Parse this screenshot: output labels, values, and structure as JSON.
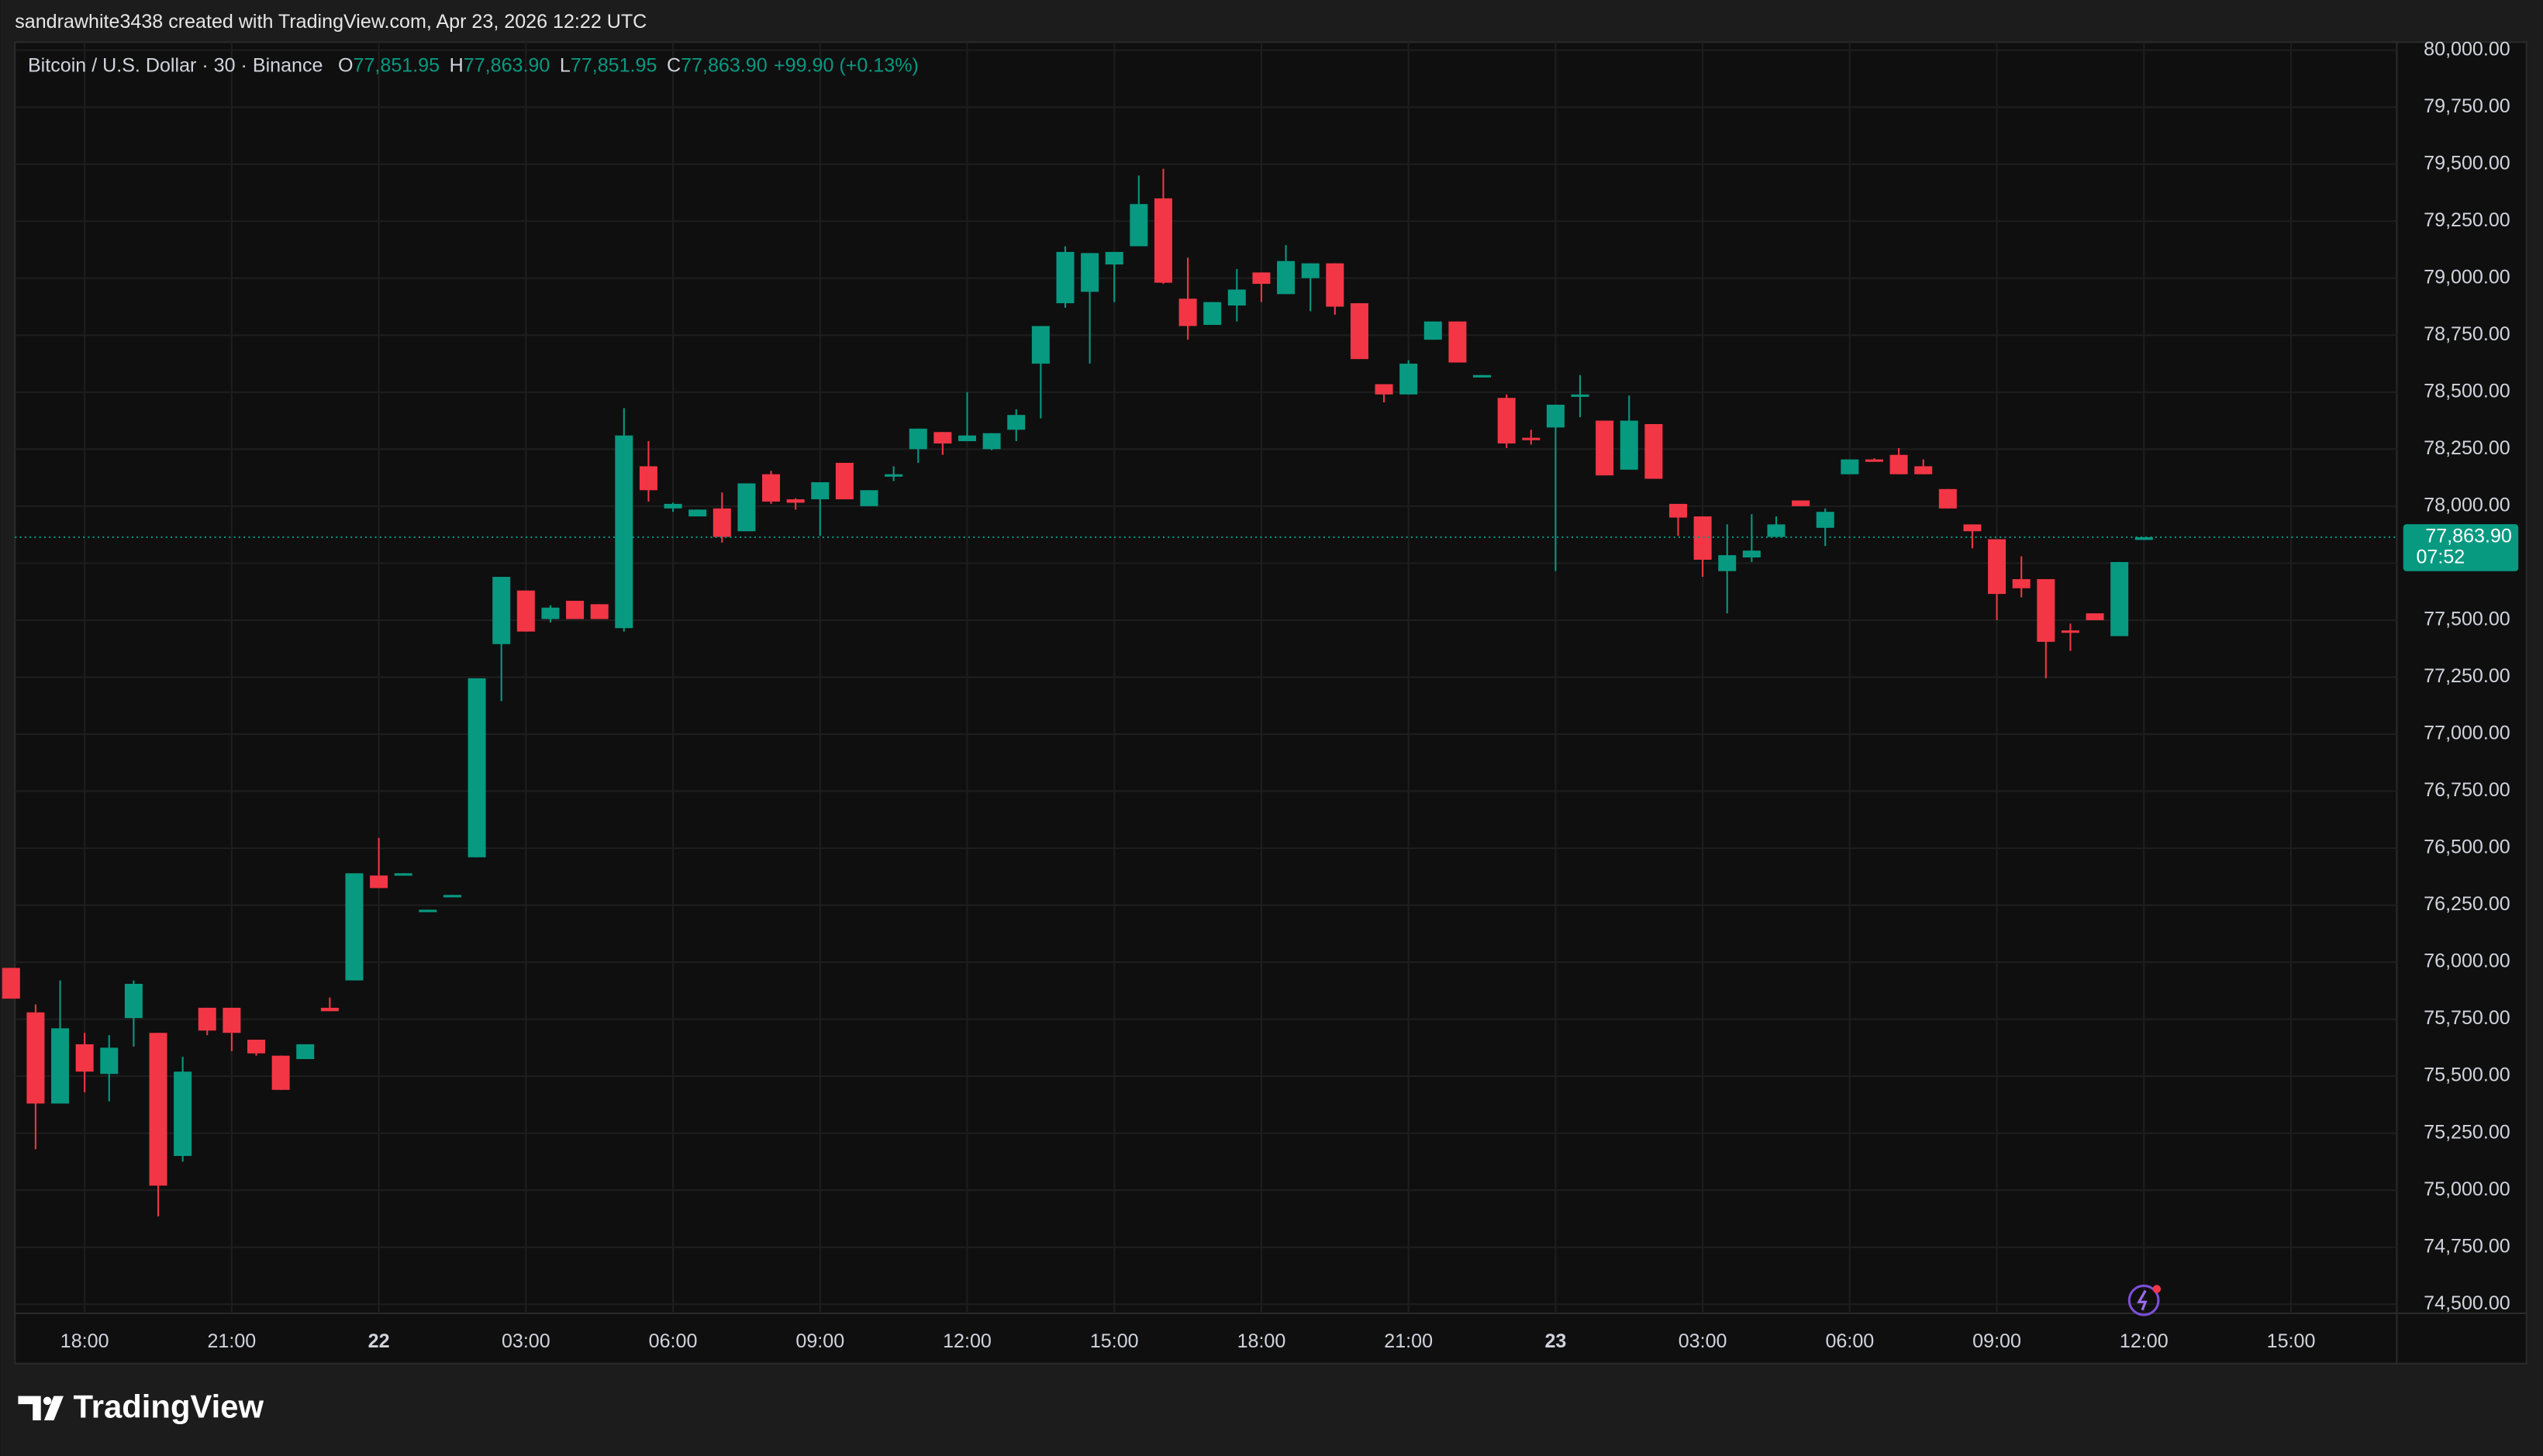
{
  "header": {
    "attribution": "sandrawhite3438 created with TradingView.com, Apr 23, 2026 12:22 UTC",
    "logo": "TradingView"
  },
  "chart_data": {
    "type": "candlestick",
    "title": "Bitcoin / U.S. Dollar · 30 · Binance",
    "ohlc_legend": [
      {
        "label": "O",
        "value": "77,851.95"
      },
      {
        "label": "H",
        "value": "77,863.90"
      },
      {
        "label": "L",
        "value": "77,851.95"
      },
      {
        "label": "C",
        "value": "77,863.90"
      }
    ],
    "change": "+99.90 (+0.13%)",
    "last_price": {
      "label": "77,863.90",
      "countdown": "07:52"
    },
    "categories": [
      null,
      null,
      null,
      "18:00",
      null,
      null,
      null,
      null,
      null,
      "21:00",
      null,
      null,
      null,
      null,
      null,
      "22",
      null,
      null,
      null,
      null,
      null,
      "03:00",
      null,
      null,
      null,
      null,
      null,
      "06:00",
      null,
      null,
      null,
      null,
      null,
      "09:00",
      null,
      null,
      null,
      null,
      null,
      "12:00",
      null,
      null,
      null,
      null,
      null,
      "15:00",
      null,
      null,
      null,
      null,
      null,
      "18:00",
      null,
      null,
      null,
      null,
      null,
      "21:00",
      null,
      null,
      null,
      null,
      null,
      "23",
      null,
      null,
      null,
      null,
      null,
      "03:00",
      null,
      null,
      null,
      null,
      null,
      "06:00",
      null,
      null,
      null,
      null,
      null,
      "09:00",
      null,
      null,
      null,
      null,
      null,
      "12:00",
      null,
      null,
      null,
      null,
      null,
      "15:00"
    ],
    "open": [
      75975,
      75780,
      75380,
      75640,
      75510,
      75755,
      75690,
      75150,
      75800,
      75800,
      75660,
      75590,
      75575,
      75800,
      75920,
      76380,
      76385,
      76225,
      76290,
      76460,
      77395,
      77630,
      77505,
      77585,
      77570,
      77465,
      78175,
      77990,
      77955,
      77990,
      77890,
      78140,
      78030,
      78030,
      78190,
      78000,
      78135,
      78250,
      78325,
      78285,
      78250,
      78335,
      78625,
      78890,
      78940,
      79060,
      79140,
      79350,
      78910,
      78795,
      78880,
      79025,
      78930,
      79000,
      79065,
      78890,
      78535,
      78490,
      78730,
      78810,
      78570,
      78475,
      78300,
      78345,
      78485,
      78375,
      78160,
      78360,
      78010,
      77955,
      77715,
      77775,
      77865,
      78025,
      77905,
      78140,
      78205,
      78225,
      78175,
      78075,
      77920,
      77855,
      77680,
      77680,
      77455,
      77530,
      77430,
      77851.95,
      null,
      null,
      null,
      null,
      null,
      null
    ],
    "high": [
      75975,
      75815,
      75920,
      75690,
      75680,
      75920,
      75690,
      75585,
      75800,
      75800,
      75660,
      75590,
      75640,
      75845,
      76390,
      76545,
      76390,
      76230,
      76295,
      77245,
      77690,
      77630,
      77565,
      77585,
      77570,
      78430,
      78285,
      78015,
      77985,
      78060,
      78100,
      78155,
      78035,
      78105,
      78190,
      78070,
      78175,
      78340,
      78325,
      78500,
      78320,
      78425,
      78790,
      79140,
      79110,
      79115,
      79450,
      79480,
      79090,
      78895,
      79040,
      79025,
      79145,
      79065,
      79065,
      78890,
      78535,
      78640,
      78810,
      78810,
      78575,
      78490,
      78335,
      78445,
      78575,
      78375,
      78485,
      78360,
      78010,
      77955,
      77920,
      77965,
      77955,
      78025,
      77990,
      78205,
      78210,
      78255,
      78205,
      78075,
      77920,
      77855,
      77780,
      77680,
      77485,
      77530,
      77755,
      77863.9,
      null,
      null,
      null,
      null,
      null,
      null
    ],
    "low": [
      75840,
      75180,
      75380,
      75430,
      75390,
      75630,
      74885,
      75125,
      75680,
      75610,
      75590,
      75440,
      75575,
      75785,
      75920,
      76325,
      76385,
      76225,
      76290,
      76460,
      77145,
      77450,
      77490,
      77505,
      77505,
      77450,
      78020,
      77975,
      77955,
      77840,
      77890,
      78010,
      77985,
      77870,
      78030,
      78000,
      78110,
      78190,
      78225,
      78285,
      78245,
      78285,
      78385,
      78870,
      78625,
      78895,
      79140,
      78975,
      78730,
      78795,
      78810,
      78895,
      78930,
      78855,
      78840,
      78645,
      78455,
      78490,
      78730,
      78630,
      78570,
      78255,
      78270,
      77715,
      78390,
      78135,
      78160,
      78120,
      77870,
      77690,
      77530,
      77755,
      77865,
      78000,
      77825,
      78140,
      78200,
      78140,
      78140,
      77990,
      77815,
      77500,
      77600,
      77245,
      77365,
      77500,
      77430,
      77851.95,
      null,
      null,
      null,
      null,
      null,
      null
    ],
    "close": [
      75840,
      75380,
      75710,
      75520,
      75625,
      75905,
      75020,
      75520,
      75700,
      75690,
      75600,
      75440,
      75640,
      75785,
      76390,
      76325,
      76390,
      76230,
      76295,
      77245,
      77690,
      77450,
      77555,
      77505,
      77505,
      78310,
      78070,
      78010,
      77985,
      77865,
      78100,
      78020,
      78015,
      78105,
      78030,
      78070,
      78140,
      78340,
      78275,
      78310,
      78320,
      78400,
      78790,
      79115,
      79110,
      79115,
      79325,
      78980,
      78790,
      78895,
      78950,
      78975,
      79075,
      79065,
      78875,
      78645,
      78490,
      78625,
      78810,
      78630,
      78575,
      78275,
      78295,
      78445,
      78490,
      78135,
      78375,
      78120,
      77950,
      77765,
      77785,
      77805,
      77920,
      78000,
      77975,
      78205,
      78200,
      78140,
      78140,
      77990,
      77890,
      77615,
      77640,
      77405,
      77450,
      77500,
      77755,
      77863.9,
      null,
      null,
      null,
      null,
      null,
      null
    ],
    "up_color": "#089981",
    "down_color": "#f23645",
    "ylim": [
      74460,
      80035
    ],
    "yticks": [
      {
        "value": 74500,
        "label": "74,500.00"
      },
      {
        "value": 74750,
        "label": "74,750.00"
      },
      {
        "value": 75000,
        "label": "75,000.00"
      },
      {
        "value": 75250,
        "label": "75,250.00"
      },
      {
        "value": 75500,
        "label": "75,500.00"
      },
      {
        "value": 75750,
        "label": "75,750.00"
      },
      {
        "value": 76000,
        "label": "76,000.00"
      },
      {
        "value": 76250,
        "label": "76,250.00"
      },
      {
        "value": 76500,
        "label": "76,500.00"
      },
      {
        "value": 76750,
        "label": "76,750.00"
      },
      {
        "value": 77000,
        "label": "77,000.00"
      },
      {
        "value": 77250,
        "label": "77,250.00"
      },
      {
        "value": 77500,
        "label": "77,500.00"
      },
      {
        "value": 77750,
        "label": "77,750.00"
      },
      {
        "value": 78000,
        "label": "78,000.00"
      },
      {
        "value": 78250,
        "label": "78,250.00"
      },
      {
        "value": 78500,
        "label": "78,500.00"
      },
      {
        "value": 78750,
        "label": "78,750.00"
      },
      {
        "value": 79000,
        "label": "79,000.00"
      },
      {
        "value": 79250,
        "label": "79,250.00"
      },
      {
        "value": 79500,
        "label": "79,500.00"
      },
      {
        "value": 79750,
        "label": "79,750.00"
      },
      {
        "value": 80000,
        "label": "80,000.00"
      }
    ],
    "grid": true
  }
}
